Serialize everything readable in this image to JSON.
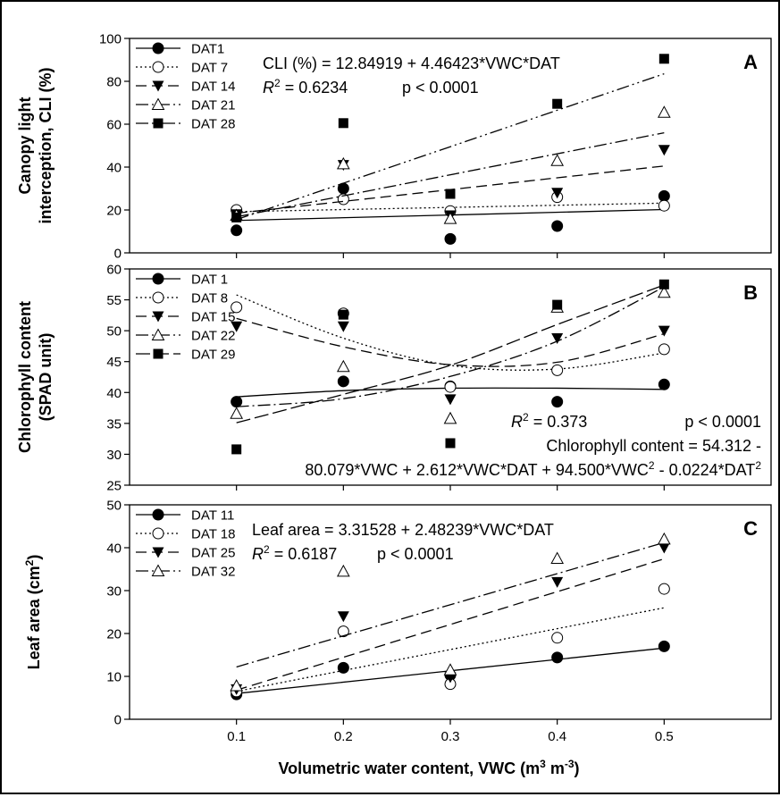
{
  "figure": {
    "xlabel_main": "Volumetric water content, VWC (m",
    "xlabel_sup1": "3",
    "xlabel_mid": " m",
    "xlabel_sup2": "-3",
    "xlabel_end": ")"
  },
  "chart_data": [
    {
      "type": "scatter",
      "panel_letter": "A",
      "ylabel_line1": "Canopy light",
      "ylabel_line2": "interception, CLI (%)",
      "ylim": [
        0,
        100
      ],
      "yticks": [
        0,
        20,
        40,
        60,
        80,
        100
      ],
      "xlim": [
        0,
        0.6
      ],
      "xticks": [
        0.1,
        0.2,
        0.3,
        0.4,
        0.5
      ],
      "legend_position": "top-left",
      "equation": "CLI (%) = 12.84919 + 4.46423*VWC*DAT",
      "r2_label": "R",
      "r2_sup": "2",
      "r2_value": " = 0.6234",
      "p_value": "p < 0.0001",
      "series": [
        {
          "name": "DAT1",
          "marker": "filled-circle",
          "dash": "",
          "x": [
            0.1,
            0.2,
            0.3,
            0.4,
            0.5
          ],
          "y": [
            10.5,
            30,
            6.5,
            12.5,
            26.5
          ],
          "fit": {
            "x": [
              0.1,
              0.5
            ],
            "y": [
              15.1,
              20.2
            ]
          }
        },
        {
          "name": "DAT 7",
          "marker": "open-circle",
          "dash": "2 3",
          "x": [
            0.1,
            0.2,
            0.3,
            0.4,
            0.5
          ],
          "y": [
            20,
            25,
            19.5,
            26,
            22
          ],
          "fit": {
            "x": [
              0.1,
              0.5
            ],
            "y": [
              19.2,
              23.2
            ]
          }
        },
        {
          "name": "DAT 14",
          "marker": "filled-triangle-down",
          "dash": "12 6",
          "x": [
            0.1,
            0.2,
            0.3,
            0.4,
            0.5
          ],
          "y": [
            18,
            41,
            17.5,
            28,
            48
          ],
          "fit": {
            "x": [
              0.1,
              0.5
            ],
            "y": [
              18.5,
              40.5
            ]
          }
        },
        {
          "name": "DAT 21",
          "marker": "open-triangle-up",
          "dash": "14 4 2 4",
          "x": [
            0.1,
            0.2,
            0.3,
            0.4,
            0.5
          ],
          "y": [
            17.5,
            41.5,
            16,
            43,
            65.5
          ],
          "fit": {
            "x": [
              0.1,
              0.5
            ],
            "y": [
              16.8,
              56
            ]
          }
        },
        {
          "name": "DAT 28",
          "marker": "filled-square",
          "dash": "14 4 2 4 2 4",
          "x": [
            0.1,
            0.2,
            0.3,
            0.4,
            0.5
          ],
          "y": [
            16.5,
            60.5,
            27.5,
            69.5,
            90.5
          ],
          "fit": {
            "x": [
              0.1,
              0.5
            ],
            "y": [
              15.5,
              83.5
            ]
          }
        }
      ]
    },
    {
      "type": "scatter",
      "panel_letter": "B",
      "ylabel_line1": "Chlorophyll content",
      "ylabel_line2": "(SPAD unit)",
      "ylim": [
        25,
        60
      ],
      "yticks": [
        25,
        30,
        35,
        40,
        45,
        50,
        55,
        60
      ],
      "xlim": [
        0,
        0.6
      ],
      "xticks": [
        0.1,
        0.2,
        0.3,
        0.4,
        0.5
      ],
      "legend_position": "top-left",
      "r2_label": "R",
      "r2_sup": "2",
      "r2_value": " = 0.373",
      "p_value": "p < 0.0001",
      "equation_line1": "Chlorophyll content = 54.312 -",
      "equation_line2_a": "80.079*VWC + 2.612*VWC*DAT + 94.500*VWC",
      "equation_line2_sup1": "2",
      "equation_line2_b": " - 0.0224*DAT",
      "equation_line2_sup2": "2",
      "series": [
        {
          "name": "DAT 1",
          "marker": "filled-circle",
          "dash": "",
          "x": [
            0.1,
            0.2,
            0.3,
            0.4,
            0.5
          ],
          "y": [
            38.5,
            41.8,
            41,
            38.5,
            41.3
          ],
          "fit": {
            "x": [
              0.1,
              0.2,
              0.3,
              0.4,
              0.5
            ],
            "y": [
              39.3,
              40.3,
              40.7,
              40.7,
              40.5
            ]
          }
        },
        {
          "name": "DAT 8",
          "marker": "open-circle",
          "dash": "2 3",
          "x": [
            0.1,
            0.2,
            0.3,
            0.4,
            0.5
          ],
          "y": [
            53.8,
            52.8,
            40.9,
            43.6,
            47
          ],
          "fit": {
            "x": [
              0.1,
              0.2,
              0.3,
              0.4,
              0.5
            ],
            "y": [
              55.8,
              48.8,
              44.4,
              43.8,
              46.4
            ]
          }
        },
        {
          "name": "DAT 15",
          "marker": "filled-triangle-down",
          "dash": "12 6",
          "x": [
            0.1,
            0.2,
            0.3,
            0.4,
            0.5
          ],
          "y": [
            50.7,
            50.7,
            38.9,
            48.8,
            50
          ],
          "fit": {
            "x": [
              0.1,
              0.2,
              0.3,
              0.4,
              0.5
            ],
            "y": [
              52,
              47.4,
              44.5,
              44.9,
              49.5
            ]
          }
        },
        {
          "name": "DAT 22",
          "marker": "open-triangle-up",
          "dash": "14 4 2 4",
          "x": [
            0.1,
            0.2,
            0.3,
            0.4,
            0.5
          ],
          "y": [
            36.6,
            44.2,
            35.8,
            53.8,
            56.2
          ],
          "fit": {
            "x": [
              0.1,
              0.2,
              0.3,
              0.4,
              0.5
            ],
            "y": [
              37.7,
              39,
              42.6,
              48.3,
              57.1
            ]
          }
        },
        {
          "name": "DAT 29",
          "marker": "filled-square",
          "dash": "16 5",
          "x": [
            0.1,
            0.2,
            0.3,
            0.4,
            0.5
          ],
          "y": [
            30.8,
            52.6,
            31.8,
            54.2,
            57.5
          ],
          "fit": {
            "x": [
              0.1,
              0.2,
              0.3,
              0.4,
              0.5
            ],
            "y": [
              35.1,
              39.7,
              44.4,
              51,
              57.4
            ]
          }
        }
      ]
    },
    {
      "type": "scatter",
      "panel_letter": "C",
      "ylabel_main": "Leaf area (cm",
      "ylabel_sup": "2",
      "ylabel_end": ")",
      "ylim": [
        0,
        50
      ],
      "yticks": [
        0,
        10,
        20,
        30,
        40,
        50
      ],
      "xlim": [
        0,
        0.6
      ],
      "xticks": [
        0.1,
        0.2,
        0.3,
        0.4,
        0.5
      ],
      "xtick_labels": [
        "0.1",
        "0.2",
        "0.3",
        "0.4",
        "0.5"
      ],
      "legend_position": "top-left",
      "equation": "Leaf area = 3.31528 + 2.48239*VWC*DAT",
      "r2_label": "R",
      "r2_sup": "2",
      "r2_value": " = 0.6187",
      "p_value": "p < 0.0001",
      "series": [
        {
          "name": "DAT 11",
          "marker": "filled-circle",
          "dash": "",
          "x": [
            0.1,
            0.2,
            0.3,
            0.4,
            0.5
          ],
          "y": [
            5.8,
            12,
            10.3,
            14.4,
            17
          ],
          "fit": {
            "x": [
              0.1,
              0.5
            ],
            "y": [
              6,
              16.6
            ]
          }
        },
        {
          "name": "DAT 18",
          "marker": "open-circle",
          "dash": "2 3",
          "x": [
            0.1,
            0.2,
            0.3,
            0.4,
            0.5
          ],
          "y": [
            6.5,
            20.5,
            8.2,
            19,
            30.4
          ],
          "fit": {
            "x": [
              0.1,
              0.5
            ],
            "y": [
              6.5,
              26
            ]
          }
        },
        {
          "name": "DAT 25",
          "marker": "filled-triangle-down",
          "dash": "12 6",
          "x": [
            0.1,
            0.2,
            0.3,
            0.4,
            0.5
          ],
          "y": [
            7,
            24,
            9.8,
            32,
            40
          ],
          "fit": {
            "x": [
              0.1,
              0.5
            ],
            "y": [
              6.8,
              37.4
            ]
          }
        },
        {
          "name": "DAT 32",
          "marker": "open-triangle-up",
          "dash": "14 4 2 4",
          "x": [
            0.1,
            0.2,
            0.3,
            0.4,
            0.5
          ],
          "y": [
            7.8,
            34.5,
            11.5,
            37.5,
            42
          ],
          "fit": {
            "x": [
              0.1,
              0.5
            ],
            "y": [
              12.2,
              41.2
            ]
          }
        }
      ]
    }
  ]
}
